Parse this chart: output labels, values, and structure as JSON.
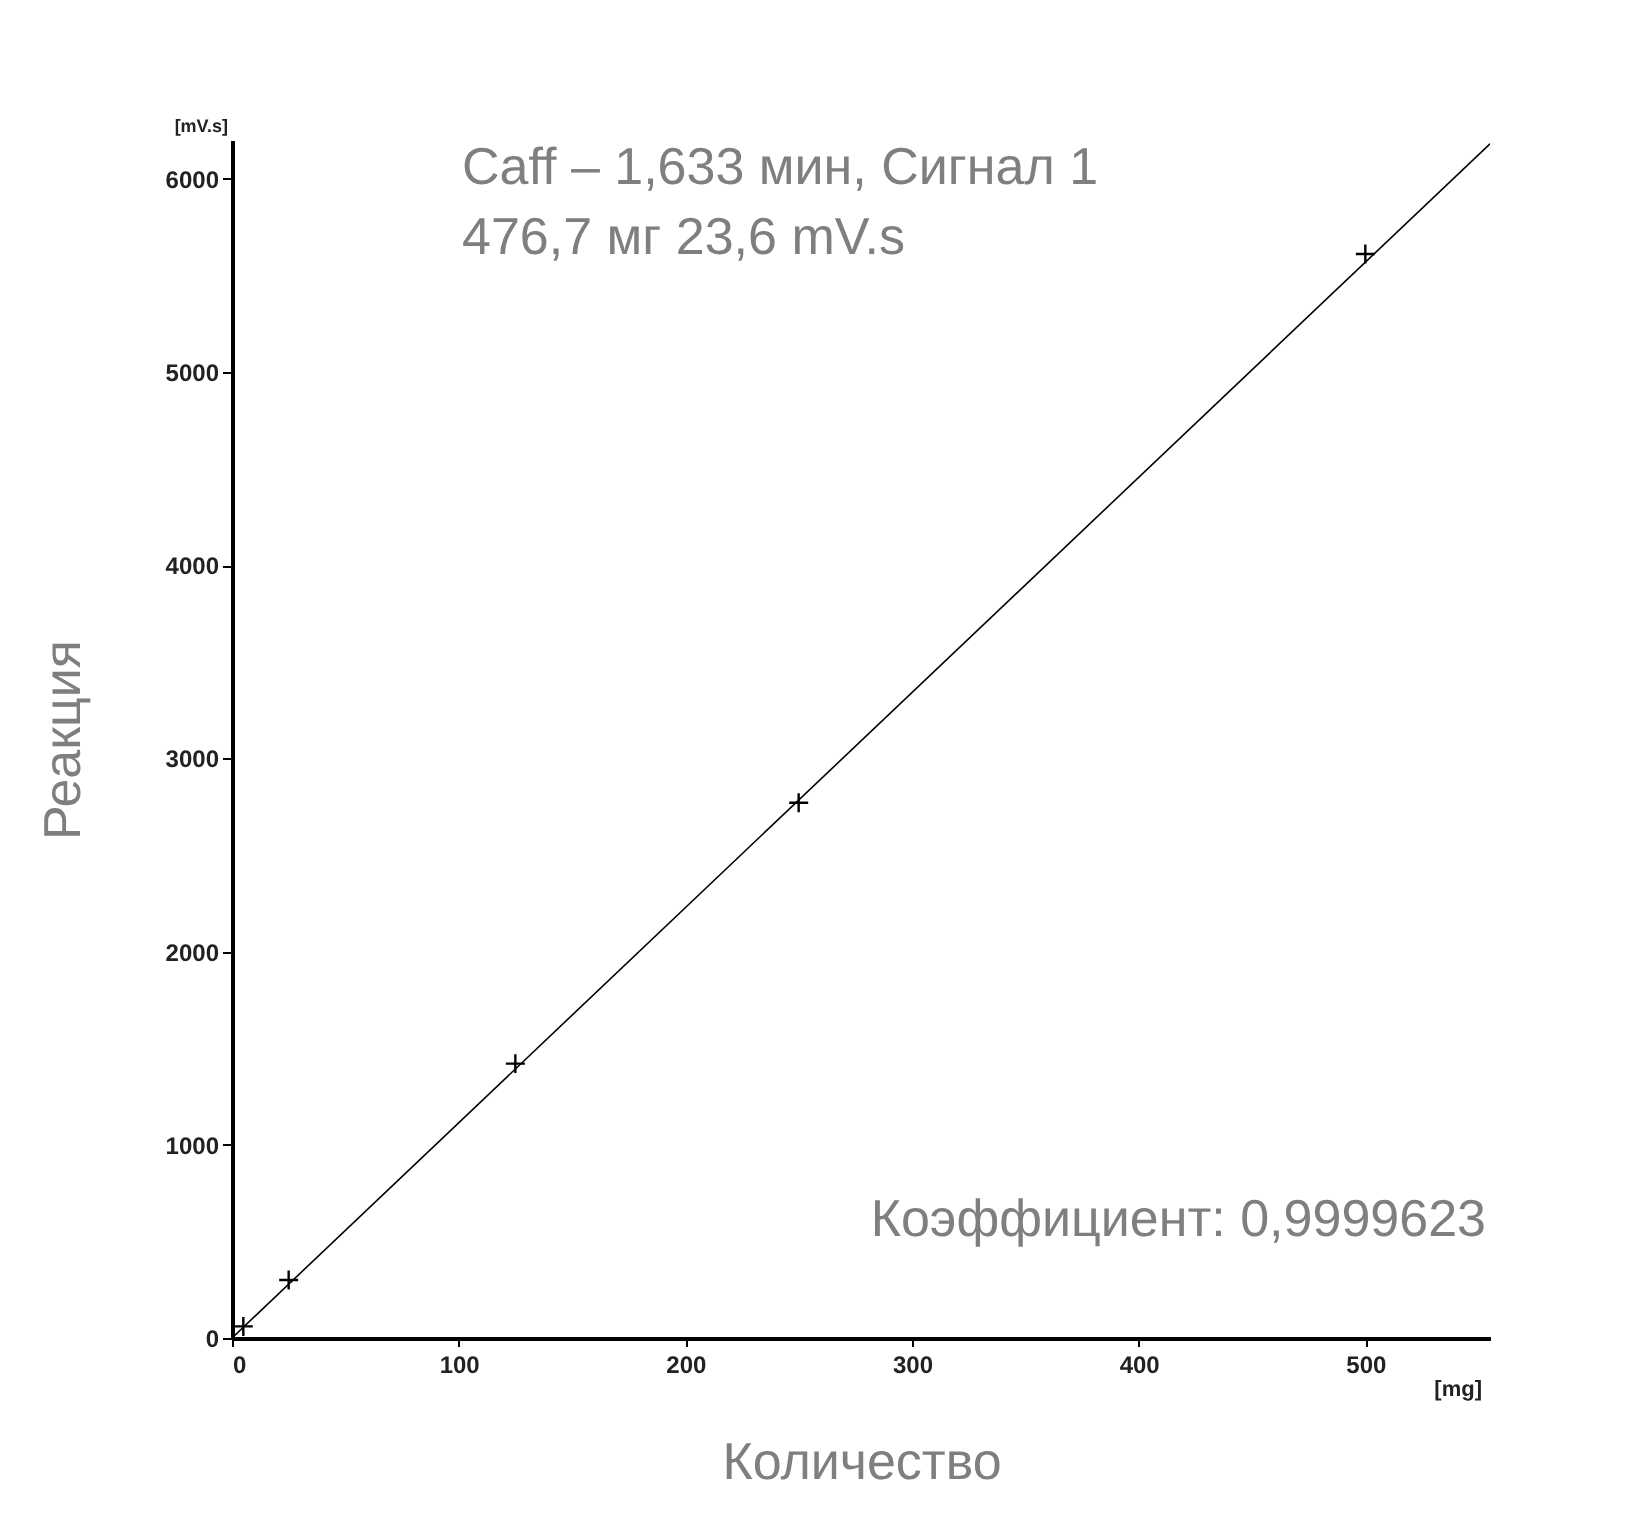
{
  "chart_data": {
    "type": "scatter",
    "xlabel": "Количество",
    "ylabel": "Реакция",
    "annotations": [
      "Caff – 1,633 мин, Сигнал 1",
      "476,7 мг  23,6 mV.s",
      "Коэффициент: 0,9999623",
      "[mV.s]",
      "[mg]"
    ],
    "series": [
      {
        "color": "#000000",
        "marker": "cross",
        "x": [
          5,
          25,
          125,
          250,
          500
        ],
        "values": [
          60,
          300,
          1420,
          2770,
          5610
        ]
      },
      {
        "type": "line",
        "color": "#000000",
        "x": [
          0,
          555
        ],
        "values": [
          0,
          6180
        ]
      }
    ],
    "xlim": [
      0,
      555
    ],
    "ylim": [
      0,
      6200
    ],
    "xticks": [
      0,
      100,
      200,
      300,
      400,
      500
    ],
    "yticks": [
      0,
      1000,
      2000,
      3000,
      4000,
      5000,
      6000
    ],
    "grid": false
  }
}
